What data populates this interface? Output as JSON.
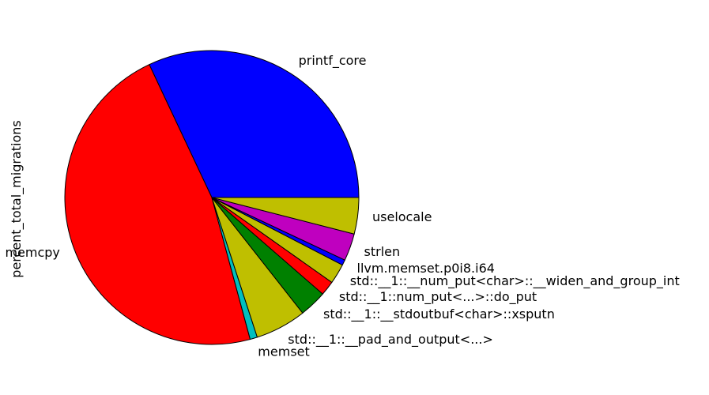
{
  "chart_data": {
    "type": "pie",
    "ylabel": "percent_total_migrations",
    "start_angle_deg": 0,
    "direction": "counterclockwise",
    "slices": [
      {
        "label": "printf_core",
        "value": 32.0,
        "color": "#0000ff"
      },
      {
        "label": "memcpy",
        "value": 47.2,
        "color": "#ff0000"
      },
      {
        "label": "memset",
        "value": 0.8,
        "color": "#00bfbf"
      },
      {
        "label": "std::__1::__pad_and_output<...>",
        "value": 5.6,
        "color": "#bfbf00"
      },
      {
        "label": "std::__1::__stdoutbuf<char>::xsputn",
        "value": 3.0,
        "color": "#008000"
      },
      {
        "label": "std::__1::num_put<...>::do_put",
        "value": 1.6,
        "color": "#ff0000"
      },
      {
        "label": "std::__1::__num_put<char>::__widen_and_group_int",
        "value": 2.2,
        "color": "#bfbf00"
      },
      {
        "label": "llvm.memset.p0i8.i64",
        "value": 0.6,
        "color": "#0000ff"
      },
      {
        "label": "strlen",
        "value": 3.0,
        "color": "#bf00bf"
      },
      {
        "label": "uselocale",
        "value": 4.0,
        "color": "#bfbf00"
      }
    ]
  }
}
